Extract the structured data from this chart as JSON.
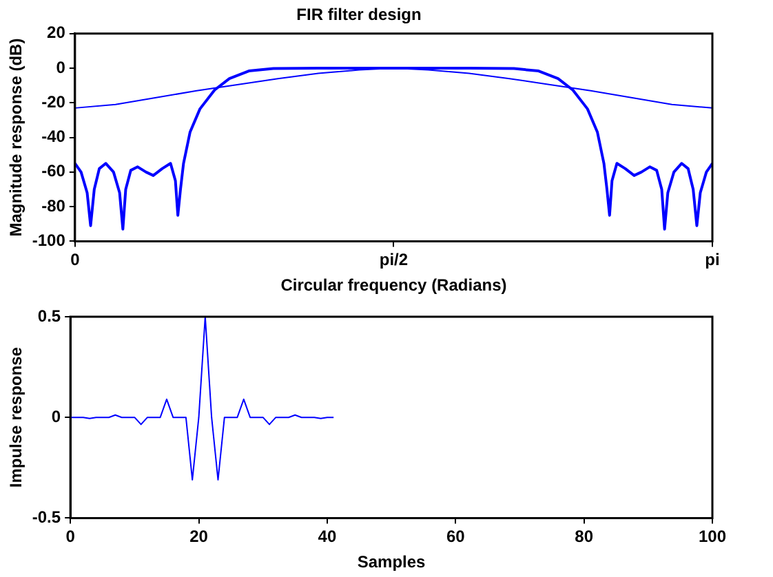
{
  "chart_data": [
    {
      "type": "line",
      "title": "FIR filter design",
      "xlabel": "Circular frequency (Radians)",
      "ylabel": "Magnitude response (dB)",
      "xlim": [
        0,
        3.1416
      ],
      "xticks": [
        0,
        {
          "value": 1.5708,
          "label": "pi/2"
        },
        {
          "value": 3.1416,
          "label": "pi"
        }
      ],
      "ylim": [
        -100,
        20
      ],
      "yticks": [
        -100,
        -80,
        -60,
        -40,
        -20,
        0,
        20
      ],
      "grid": false,
      "legend": false,
      "marker": "none",
      "line_style": "solid",
      "series": [
        {
          "color": "#0000ff",
          "x": [
            0,
            0.2,
            0.4,
            0.6,
            0.8,
            1.0,
            1.2,
            1.4,
            1.571,
            1.742,
            1.942,
            2.142,
            2.342,
            2.542,
            2.742,
            2.942,
            3.1416
          ],
          "values": [
            -23,
            -21,
            -17,
            -13,
            -9.5,
            -6,
            -3,
            -1,
            0,
            -1,
            -3,
            -6,
            -9.5,
            -13,
            -17,
            -21,
            -23
          ]
        },
        {
          "color": "#0000ff",
          "x": [
            0,
            0.03,
            0.06,
            0.077,
            0.095,
            0.12,
            0.152,
            0.19,
            0.22,
            0.236,
            0.25,
            0.275,
            0.309,
            0.35,
            0.386,
            0.43,
            0.471,
            0.495,
            0.507,
            0.52,
            0.535,
            0.567,
            0.616,
            0.688,
            0.761,
            0.857,
            0.978,
            1.2,
            1.571,
            1.942,
            2.164,
            2.285,
            2.381,
            2.454,
            2.526,
            2.575,
            2.607,
            2.622,
            2.635,
            2.647,
            2.671,
            2.712,
            2.756,
            2.792,
            2.833,
            2.867,
            2.892,
            2.906,
            2.922,
            2.952,
            2.99,
            3.022,
            3.047,
            3.065,
            3.082,
            3.112,
            3.1416
          ],
          "values": [
            -55,
            -60,
            -72,
            -91,
            -70,
            -58,
            -55,
            -60,
            -72,
            -93,
            -70,
            -59,
            -57,
            -60,
            -62,
            -58,
            -55,
            -65,
            -85,
            -70,
            -55,
            -37,
            -23.5,
            -12.6,
            -6,
            -1.6,
            -0.2,
            0,
            0,
            0,
            -0.2,
            -1.6,
            -6,
            -12.6,
            -23.5,
            -37,
            -55,
            -70,
            -85,
            -65,
            -55,
            -58,
            -62,
            -60,
            -57,
            -59,
            -70,
            -93,
            -72,
            -60,
            -55,
            -58,
            -70,
            -91,
            -72,
            -60,
            -55
          ]
        }
      ]
    },
    {
      "type": "line",
      "xlabel": "Samples",
      "ylabel": "Impulse response",
      "xlim": [
        0,
        100
      ],
      "xticks": [
        0,
        20,
        40,
        60,
        80,
        100
      ],
      "ylim": [
        -0.5,
        0.5
      ],
      "yticks": [
        -0.5,
        0,
        0.5
      ],
      "grid": false,
      "legend": false,
      "marker": "none",
      "line_style": "solid",
      "series": [
        {
          "color": "#0000ff",
          "x": [
            0,
            1,
            2,
            3,
            4,
            5,
            6,
            7,
            8,
            9,
            10,
            11,
            12,
            13,
            14,
            15,
            16,
            17,
            18,
            19,
            20,
            21,
            22,
            23,
            24,
            25,
            26,
            27,
            28,
            29,
            30,
            31,
            32,
            33,
            34,
            35,
            36,
            37,
            38,
            39,
            40,
            41
          ],
          "values": [
            0,
            0,
            0,
            -0.005,
            0,
            0,
            0,
            0.012,
            0,
            0,
            0,
            -0.035,
            0,
            0,
            0,
            0.09,
            0,
            0,
            0,
            -0.31,
            0,
            0.5,
            0,
            -0.31,
            0,
            0,
            0,
            0.09,
            0,
            0,
            0,
            -0.035,
            0,
            0,
            0,
            0.012,
            0,
            0,
            0,
            -0.005,
            0,
            0
          ]
        }
      ]
    }
  ]
}
